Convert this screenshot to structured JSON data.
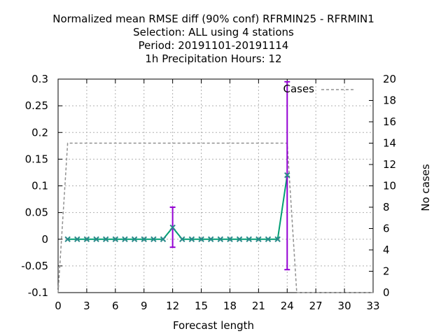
{
  "chart_data": {
    "type": "line",
    "title_lines": [
      "Normalized mean RMSE diff (90% conf) RFRMIN25 - RFRMIN1",
      "Selection: ALL using     4 stations",
      "Period: 20191101-20191114",
      "1h Precipitation   Hours:  12"
    ],
    "xlabel": "Forecast length",
    "ylabel_right": "No cases",
    "xlim": [
      0,
      33
    ],
    "ylim": [
      -0.1,
      0.3
    ],
    "y2lim": [
      0,
      20
    ],
    "x_ticks": [
      "0",
      "3",
      "6",
      "9",
      "12",
      "15",
      "18",
      "21",
      "24",
      "27",
      "30",
      "33"
    ],
    "y_ticks": [
      "-0.1",
      "-0.05",
      "0",
      "0.05",
      "0.1",
      "0.15",
      "0.2",
      "0.25",
      "0.3"
    ],
    "y2_ticks": [
      "0",
      "2",
      "4",
      "6",
      "8",
      "10",
      "12",
      "14",
      "16",
      "18",
      "20"
    ],
    "grid": true,
    "legend_position": "top-right",
    "series": [
      {
        "name": "",
        "color": "#009e73",
        "marker_color": "#2a8a8a",
        "x": [
          1,
          2,
          3,
          4,
          5,
          6,
          7,
          8,
          9,
          10,
          11,
          12,
          13,
          14,
          15,
          16,
          17,
          18,
          19,
          20,
          21,
          22,
          23,
          24
        ],
        "y": [
          0,
          0,
          0,
          0,
          0,
          0,
          0,
          0,
          0,
          0,
          0,
          0.022,
          0,
          0,
          0,
          0,
          0,
          0,
          0,
          0,
          0,
          0,
          0,
          0.12
        ]
      },
      {
        "name": "Cases",
        "axis": "y2",
        "color": "#909090",
        "style": "dashed",
        "x": [
          0,
          1,
          2,
          3,
          4,
          5,
          6,
          7,
          8,
          9,
          10,
          11,
          12,
          13,
          14,
          15,
          16,
          17,
          18,
          19,
          20,
          21,
          22,
          23,
          24,
          25,
          26,
          27,
          28,
          29,
          30,
          31,
          32,
          33
        ],
        "y": [
          0,
          14,
          14,
          14,
          14,
          14,
          14,
          14,
          14,
          14,
          14,
          14,
          14,
          14,
          14,
          14,
          14,
          14,
          14,
          14,
          14,
          14,
          14,
          14,
          14,
          0,
          0,
          0,
          0,
          0,
          0,
          0,
          0,
          0
        ]
      }
    ],
    "error_bars": {
      "color": "#9400d3",
      "items": [
        {
          "x": 12,
          "low": -0.015,
          "high": 0.06
        },
        {
          "x": 24,
          "low": -0.057,
          "high": 0.295
        }
      ]
    }
  }
}
